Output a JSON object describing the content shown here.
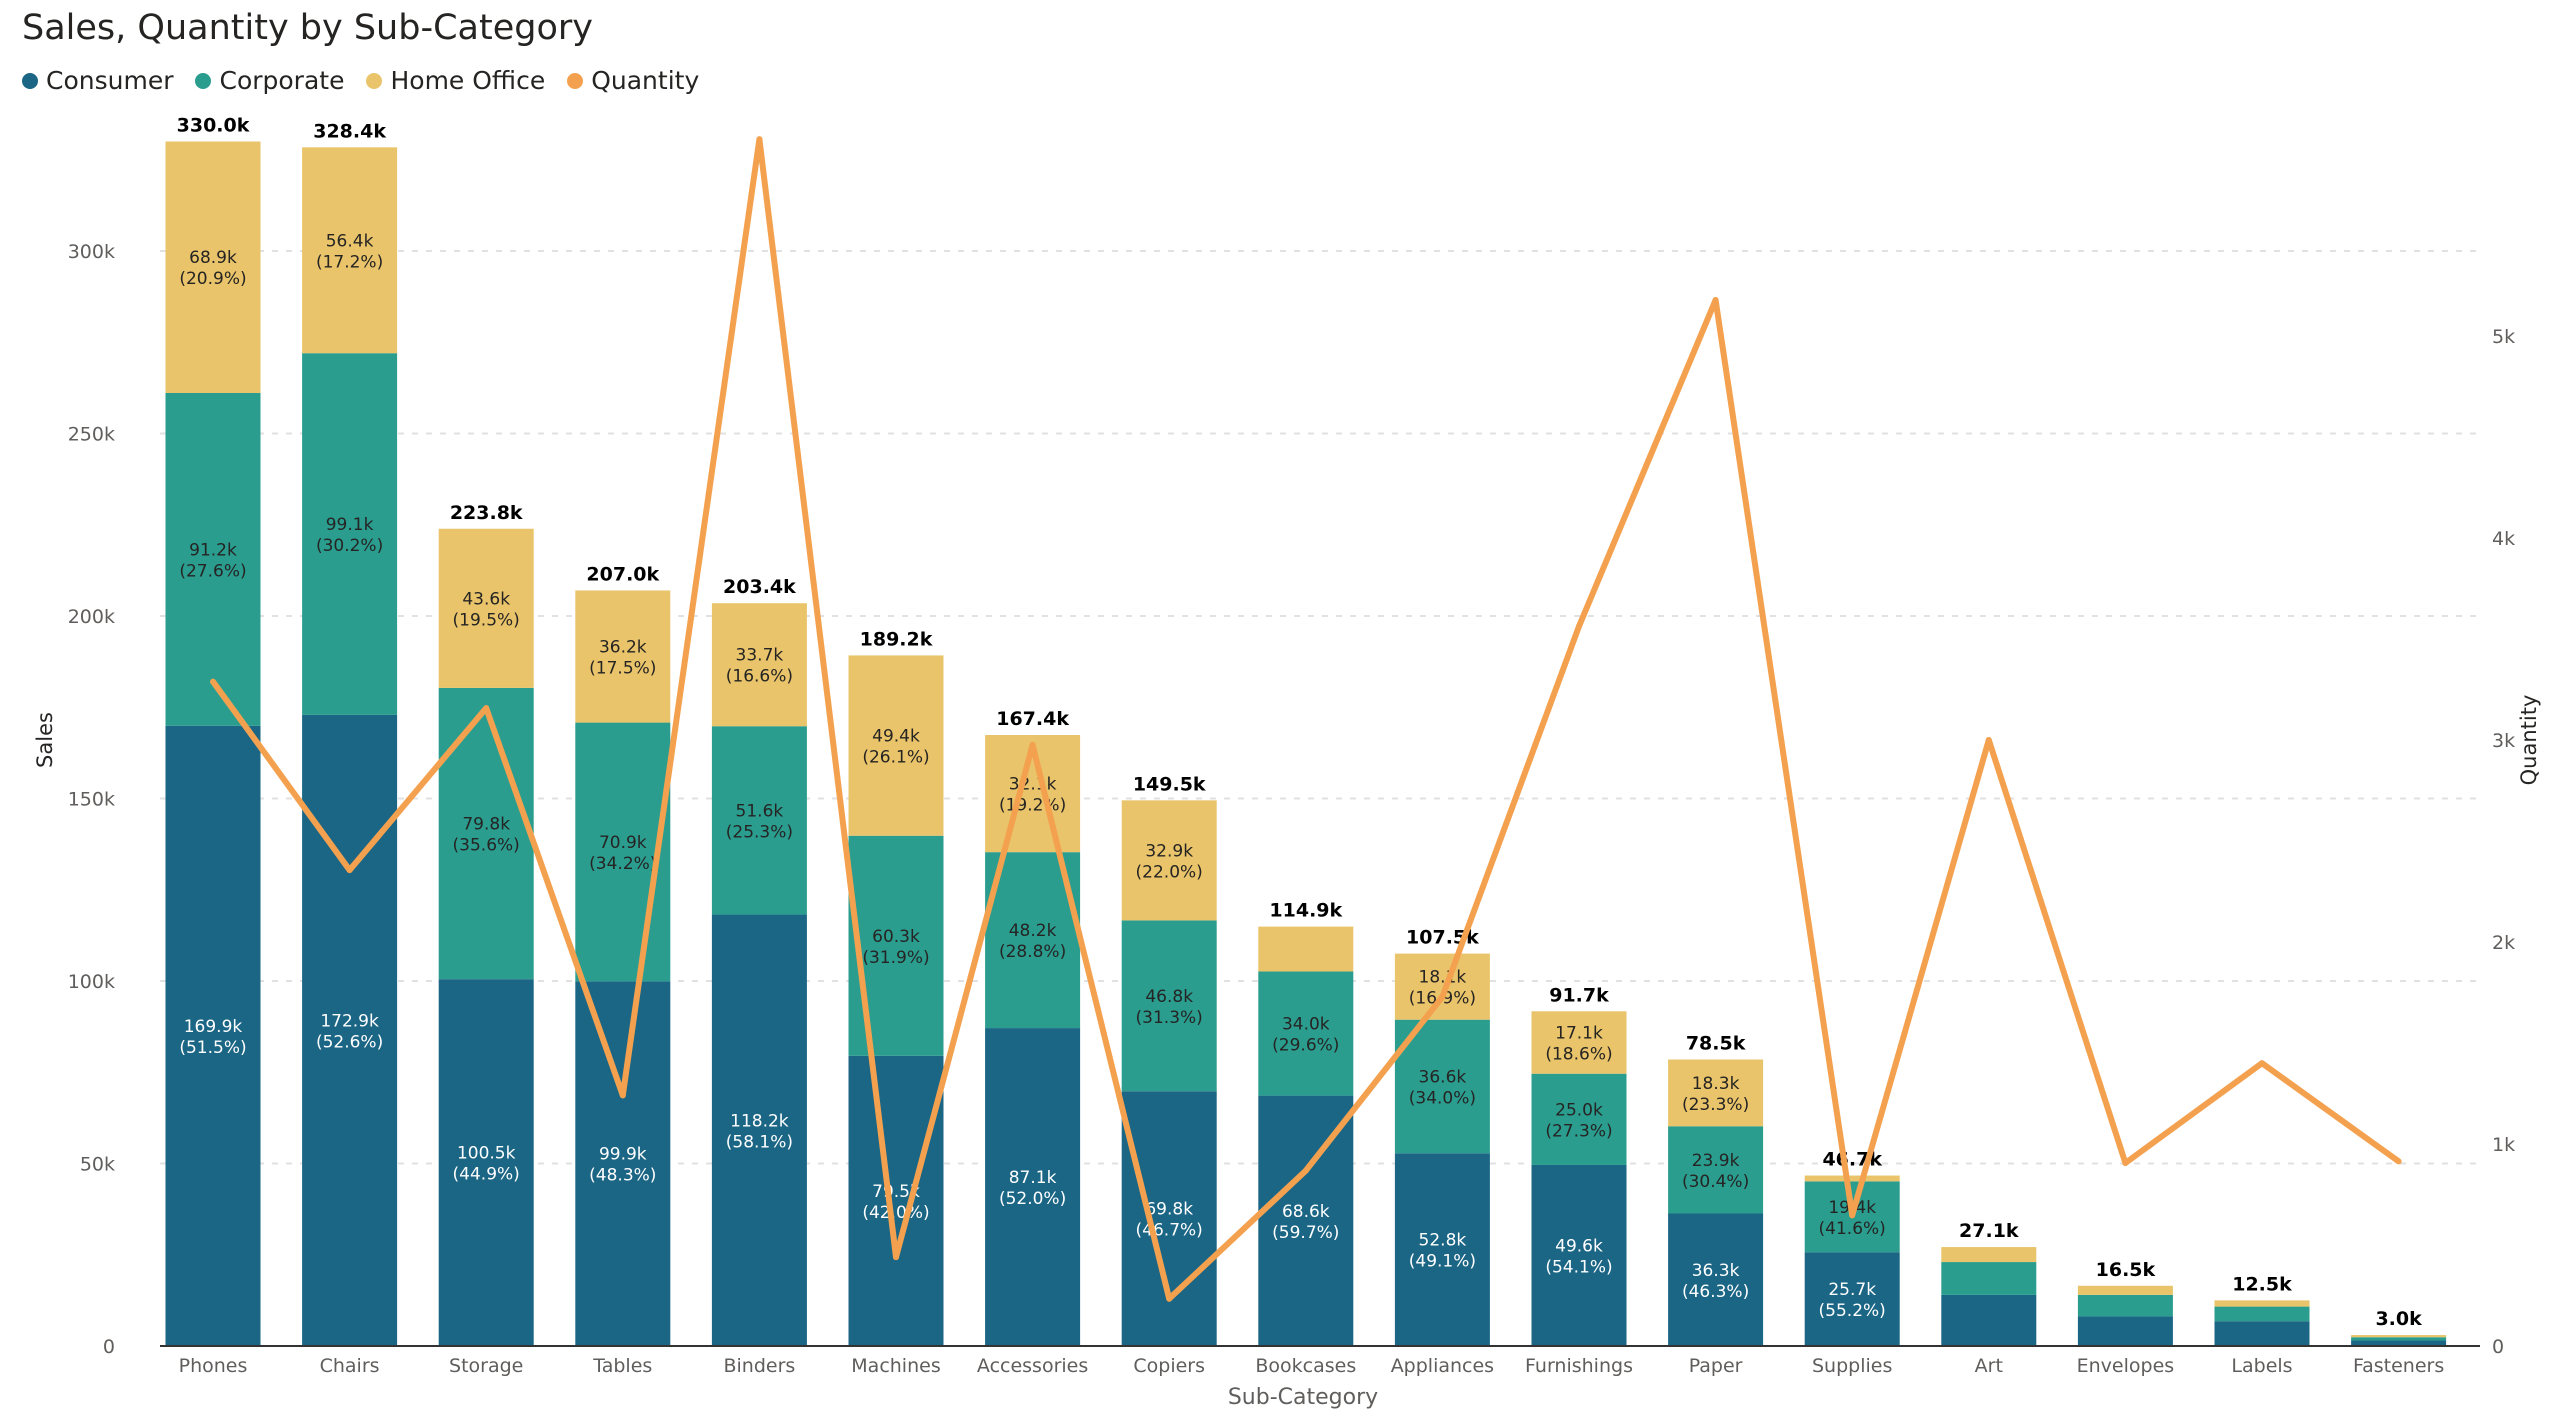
{
  "chart_data": {
    "type": "bar",
    "title": "Sales, Quantity by Sub-Category",
    "xlabel": "Sub-Category",
    "ylabel": "Sales",
    "y2label": "Quantity",
    "ylim": [
      0,
      330000
    ],
    "y2lim": [
      0,
      6000
    ],
    "yticks": [
      "0",
      "50k",
      "100k",
      "150k",
      "200k",
      "250k",
      "300k"
    ],
    "y2ticks": [
      "0",
      "1k",
      "2k",
      "3k",
      "4k",
      "5k"
    ],
    "grid": true,
    "legend_position": "top-left",
    "categories": [
      "Phones",
      "Chairs",
      "Storage",
      "Tables",
      "Binders",
      "Machines",
      "Accessories",
      "Copiers",
      "Bookcases",
      "Appliances",
      "Furnishings",
      "Paper",
      "Supplies",
      "Art",
      "Envelopes",
      "Labels",
      "Fasteners"
    ],
    "totals": [
      "330.0k",
      "328.4k",
      "223.8k",
      "207.0k",
      "203.4k",
      "189.2k",
      "167.4k",
      "149.5k",
      "114.9k",
      "107.5k",
      "91.7k",
      "78.5k",
      "46.7k",
      "27.1k",
      "16.5k",
      "12.5k",
      "3.0k"
    ],
    "series": [
      {
        "name": "Consumer",
        "type": "stacked-bar",
        "color": "#1b6585",
        "values": [
          169900,
          172900,
          100500,
          99900,
          118200,
          79500,
          87100,
          69800,
          68600,
          52800,
          49600,
          36300,
          25700,
          14000,
          8100,
          6800,
          1500
        ],
        "labels": [
          "169.9k",
          "172.9k",
          "100.5k",
          "99.9k",
          "118.2k",
          "79.5k",
          "87.1k",
          "69.8k",
          "68.6k",
          "52.8k",
          "49.6k",
          "36.3k",
          "25.7k",
          null,
          null,
          null,
          null
        ],
        "pcts": [
          "(51.5%)",
          "(52.6%)",
          "(44.9%)",
          "(48.3%)",
          "(58.1%)",
          "(42.0%)",
          "(52.0%)",
          "(46.7%)",
          "(59.7%)",
          "(49.1%)",
          "(54.1%)",
          "(46.3%)",
          "(55.2%)",
          null,
          null,
          null,
          null
        ]
      },
      {
        "name": "Corporate",
        "type": "stacked-bar",
        "color": "#2a9d8f",
        "values": [
          91200,
          99100,
          79800,
          70900,
          51600,
          60300,
          48200,
          46800,
          34000,
          36600,
          25000,
          23900,
          19400,
          9000,
          5900,
          4000,
          900
        ],
        "labels": [
          "91.2k",
          "99.1k",
          "79.8k",
          "70.9k",
          "51.6k",
          "60.3k",
          "48.2k",
          "46.8k",
          "34.0k",
          "36.6k",
          "25.0k",
          "23.9k",
          "19.4k",
          null,
          null,
          null,
          null
        ],
        "pcts": [
          "(27.6%)",
          "(30.2%)",
          "(35.6%)",
          "(34.2%)",
          "(25.3%)",
          "(31.9%)",
          "(28.8%)",
          "(31.3%)",
          "(29.6%)",
          "(34.0%)",
          "(27.3%)",
          "(30.4%)",
          "(41.6%)",
          null,
          null,
          null,
          null
        ]
      },
      {
        "name": "Home Office",
        "type": "stacked-bar",
        "color": "#e9c46a",
        "values": [
          68900,
          56400,
          43600,
          36200,
          33700,
          49400,
          32100,
          32900,
          12300,
          18100,
          17100,
          18300,
          1600,
          4100,
          2500,
          1700,
          600
        ],
        "labels": [
          "68.9k",
          "56.4k",
          "43.6k",
          "36.2k",
          "33.7k",
          "49.4k",
          "32.1k",
          "32.9k",
          null,
          "18.1k",
          "17.1k",
          "18.3k",
          null,
          null,
          null,
          null,
          null
        ],
        "pcts": [
          "(20.9%)",
          "(17.2%)",
          "(19.5%)",
          "(17.5%)",
          "(16.6%)",
          "(26.1%)",
          "(19.2%)",
          "(22.0%)",
          null,
          "(16.9%)",
          "(18.6%)",
          "(23.3%)",
          null,
          null,
          null,
          null,
          null
        ]
      },
      {
        "name": "Quantity",
        "type": "line",
        "axis": "right",
        "color": "#f4a14f",
        "values": [
          3289,
          2356,
          3158,
          1241,
          5974,
          440,
          2976,
          234,
          868,
          1729,
          3563,
          5178,
          647,
          3000,
          906,
          1400,
          914
        ]
      }
    ]
  }
}
